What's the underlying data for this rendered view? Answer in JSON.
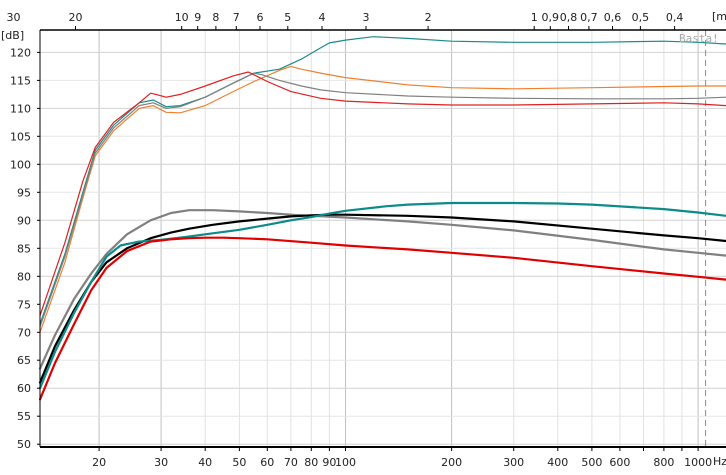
{
  "chart_data": {
    "type": "line",
    "ylabel": "[dB]",
    "xlabel": "Hz",
    "top_axis_label": "[m",
    "watermark": "Basta!",
    "x_scale": "log",
    "xlim": [
      13.6,
      1200
    ],
    "ylim": [
      49.5,
      124
    ],
    "grid": true,
    "legend": "none",
    "marker_hz": 1050,
    "x_ticks": [
      20,
      30,
      40,
      50,
      60,
      70,
      80,
      90,
      100,
      200,
      300,
      400,
      500,
      600,
      800,
      1000
    ],
    "x_tick_labels": [
      "20",
      "30",
      "40",
      "50",
      "60",
      "70",
      "80",
      "90",
      "100",
      "200",
      "300",
      "400",
      "500",
      "600",
      "800",
      "1000"
    ],
    "y_ticks": [
      50,
      55,
      60,
      65,
      70,
      75,
      80,
      85,
      90,
      95,
      100,
      105,
      110,
      115,
      120
    ],
    "y_tick_labels": [
      "50",
      "55",
      "60",
      "65",
      "70",
      "75",
      "80",
      "85",
      "90",
      "95",
      "100",
      "105",
      "110",
      "115",
      "120"
    ],
    "top_ticks": [
      {
        "label": "30",
        "hz": 11.44
      },
      {
        "label": "20",
        "hz": 17.15
      },
      {
        "label": "10",
        "hz": 34.3
      },
      {
        "label": "9",
        "hz": 38.1
      },
      {
        "label": "8",
        "hz": 42.9
      },
      {
        "label": "7",
        "hz": 49.0
      },
      {
        "label": "6",
        "hz": 57.2
      },
      {
        "label": "5",
        "hz": 68.6
      },
      {
        "label": "4",
        "hz": 85.8
      },
      {
        "label": "3",
        "hz": 114.3
      },
      {
        "label": "2",
        "hz": 171.5
      },
      {
        "label": "1",
        "hz": 343
      },
      {
        "label": "0,9",
        "hz": 381
      },
      {
        "label": "0,8",
        "hz": 429
      },
      {
        "label": "0,7",
        "hz": 490
      },
      {
        "label": "0,6",
        "hz": 572
      },
      {
        "label": "0,5",
        "hz": 686
      },
      {
        "label": "0,4",
        "hz": 858
      }
    ],
    "series": [
      {
        "color": "#1c8a8a",
        "width": 1.2,
        "x": [
          13.6,
          16,
          18,
          19.5,
          22,
          26,
          28.5,
          31,
          34,
          40,
          48,
          55,
          65,
          75,
          85,
          90,
          100,
          120,
          150,
          200,
          300,
          500,
          800,
          1000,
          1200
        ],
        "y": [
          71.5,
          84,
          95,
          102.5,
          107,
          111,
          111.5,
          110.3,
          110.5,
          112,
          114.5,
          116.3,
          117,
          118.8,
          120.8,
          121.7,
          122.2,
          122.8,
          122.5,
          122,
          121.8,
          121.8,
          122,
          121.8,
          121.5
        ]
      },
      {
        "color": "#f08030",
        "width": 1.2,
        "x": [
          13.6,
          16,
          18,
          19.5,
          22,
          26,
          28.5,
          31,
          34,
          40,
          48,
          55,
          65,
          70,
          75,
          85,
          100,
          150,
          200,
          300,
          500,
          800,
          1000,
          1200
        ],
        "y": [
          70,
          82.5,
          94,
          101.5,
          106,
          110,
          110.5,
          109.3,
          109.2,
          110.5,
          113,
          114.8,
          116.8,
          117.5,
          117,
          116.3,
          115.5,
          114.2,
          113.7,
          113.5,
          113.7,
          113.9,
          114,
          114
        ]
      },
      {
        "color": "#808080",
        "width": 1.2,
        "x": [
          13.6,
          16,
          18,
          19.5,
          22,
          26,
          28.5,
          31,
          34,
          40,
          48,
          55,
          58,
          65,
          75,
          85,
          100,
          150,
          200,
          300,
          500,
          800,
          1000,
          1200
        ],
        "y": [
          71,
          83.5,
          94.5,
          102,
          106.5,
          110.5,
          111,
          110,
          110.3,
          112,
          114.5,
          116.3,
          116,
          115,
          114,
          113.3,
          112.8,
          112.2,
          112,
          111.8,
          111.7,
          111.7,
          111.8,
          112
        ]
      },
      {
        "color": "#e02020",
        "width": 1.2,
        "x": [
          13.6,
          16,
          18,
          19.5,
          22,
          26,
          28,
          29,
          31,
          34,
          40,
          48,
          53,
          55,
          60,
          70,
          85,
          100,
          150,
          200,
          300,
          500,
          800,
          1000,
          1200
        ],
        "y": [
          73,
          86,
          97,
          103,
          107.5,
          111,
          112.7,
          112.5,
          112,
          112.5,
          114,
          115.8,
          116.5,
          116,
          114.8,
          113,
          111.8,
          111.3,
          110.8,
          110.6,
          110.6,
          110.8,
          111,
          110.8,
          110.5
        ]
      },
      {
        "color": "#808080",
        "width": 2.2,
        "x": [
          13.6,
          15,
          17,
          19,
          21,
          24,
          28,
          32,
          36,
          42,
          50,
          60,
          70,
          80,
          100,
          150,
          200,
          300,
          500,
          800,
          1000,
          1200
        ],
        "y": [
          63.5,
          69.5,
          76,
          80.5,
          84,
          87.5,
          90,
          91.3,
          91.8,
          91.8,
          91.6,
          91.3,
          91,
          90.8,
          90.5,
          89.8,
          89.2,
          88.2,
          86.5,
          84.8,
          84.2,
          83.7
        ]
      },
      {
        "color": "#000000",
        "width": 2.2,
        "x": [
          13.6,
          15,
          17,
          19,
          21,
          24,
          28,
          32,
          36,
          42,
          50,
          60,
          70,
          80,
          90,
          100,
          150,
          200,
          300,
          500,
          800,
          1000,
          1200
        ],
        "y": [
          61,
          67.5,
          74,
          79,
          82.5,
          85,
          86.8,
          87.8,
          88.5,
          89.2,
          89.8,
          90.3,
          90.7,
          90.9,
          91,
          91,
          90.8,
          90.5,
          89.8,
          88.5,
          87.3,
          86.8,
          86.3
        ]
      },
      {
        "color": "#0d8a8a",
        "width": 2.2,
        "x": [
          13.6,
          15,
          17,
          19,
          21,
          23,
          26,
          30,
          35,
          40,
          50,
          60,
          70,
          80,
          90,
          100,
          130,
          150,
          200,
          300,
          400,
          500,
          800,
          1000,
          1200
        ],
        "y": [
          60,
          66.5,
          73.5,
          79,
          83.5,
          85.5,
          86.2,
          86.5,
          87,
          87.5,
          88.3,
          89.2,
          90,
          90.6,
          91.2,
          91.7,
          92.5,
          92.8,
          93.1,
          93.1,
          93,
          92.8,
          92,
          91.4,
          90.8
        ]
      },
      {
        "color": "#e00000",
        "width": 2.2,
        "x": [
          13.6,
          15,
          17,
          19,
          21,
          24,
          28,
          32,
          36,
          40,
          45,
          50,
          60,
          80,
          100,
          150,
          200,
          300,
          500,
          800,
          1000,
          1200
        ],
        "y": [
          58,
          64.5,
          71.5,
          77.5,
          81.5,
          84.5,
          86.2,
          86.6,
          86.8,
          86.9,
          86.9,
          86.8,
          86.6,
          86,
          85.5,
          84.8,
          84.2,
          83.3,
          81.8,
          80.5,
          79.9,
          79.4
        ]
      }
    ]
  }
}
